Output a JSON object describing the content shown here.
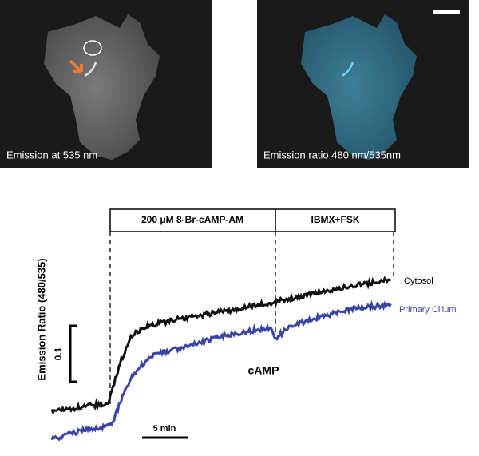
{
  "images": [
    {
      "label": "Emission at 535 nm"
    },
    {
      "label": "Emission ratio 480 nm/535nm"
    }
  ],
  "plot": {
    "stimuli": [
      "200 μM 8-Br-cAMP-AM",
      "IBMX+FSK"
    ],
    "y_label": "Emission Ratio (480/535)",
    "scale_bars": {
      "ratio": "0.1",
      "time": "5 min"
    },
    "traces": [
      "Cytosol",
      "Primary Cilium"
    ],
    "annotation": "cAMP"
  }
}
